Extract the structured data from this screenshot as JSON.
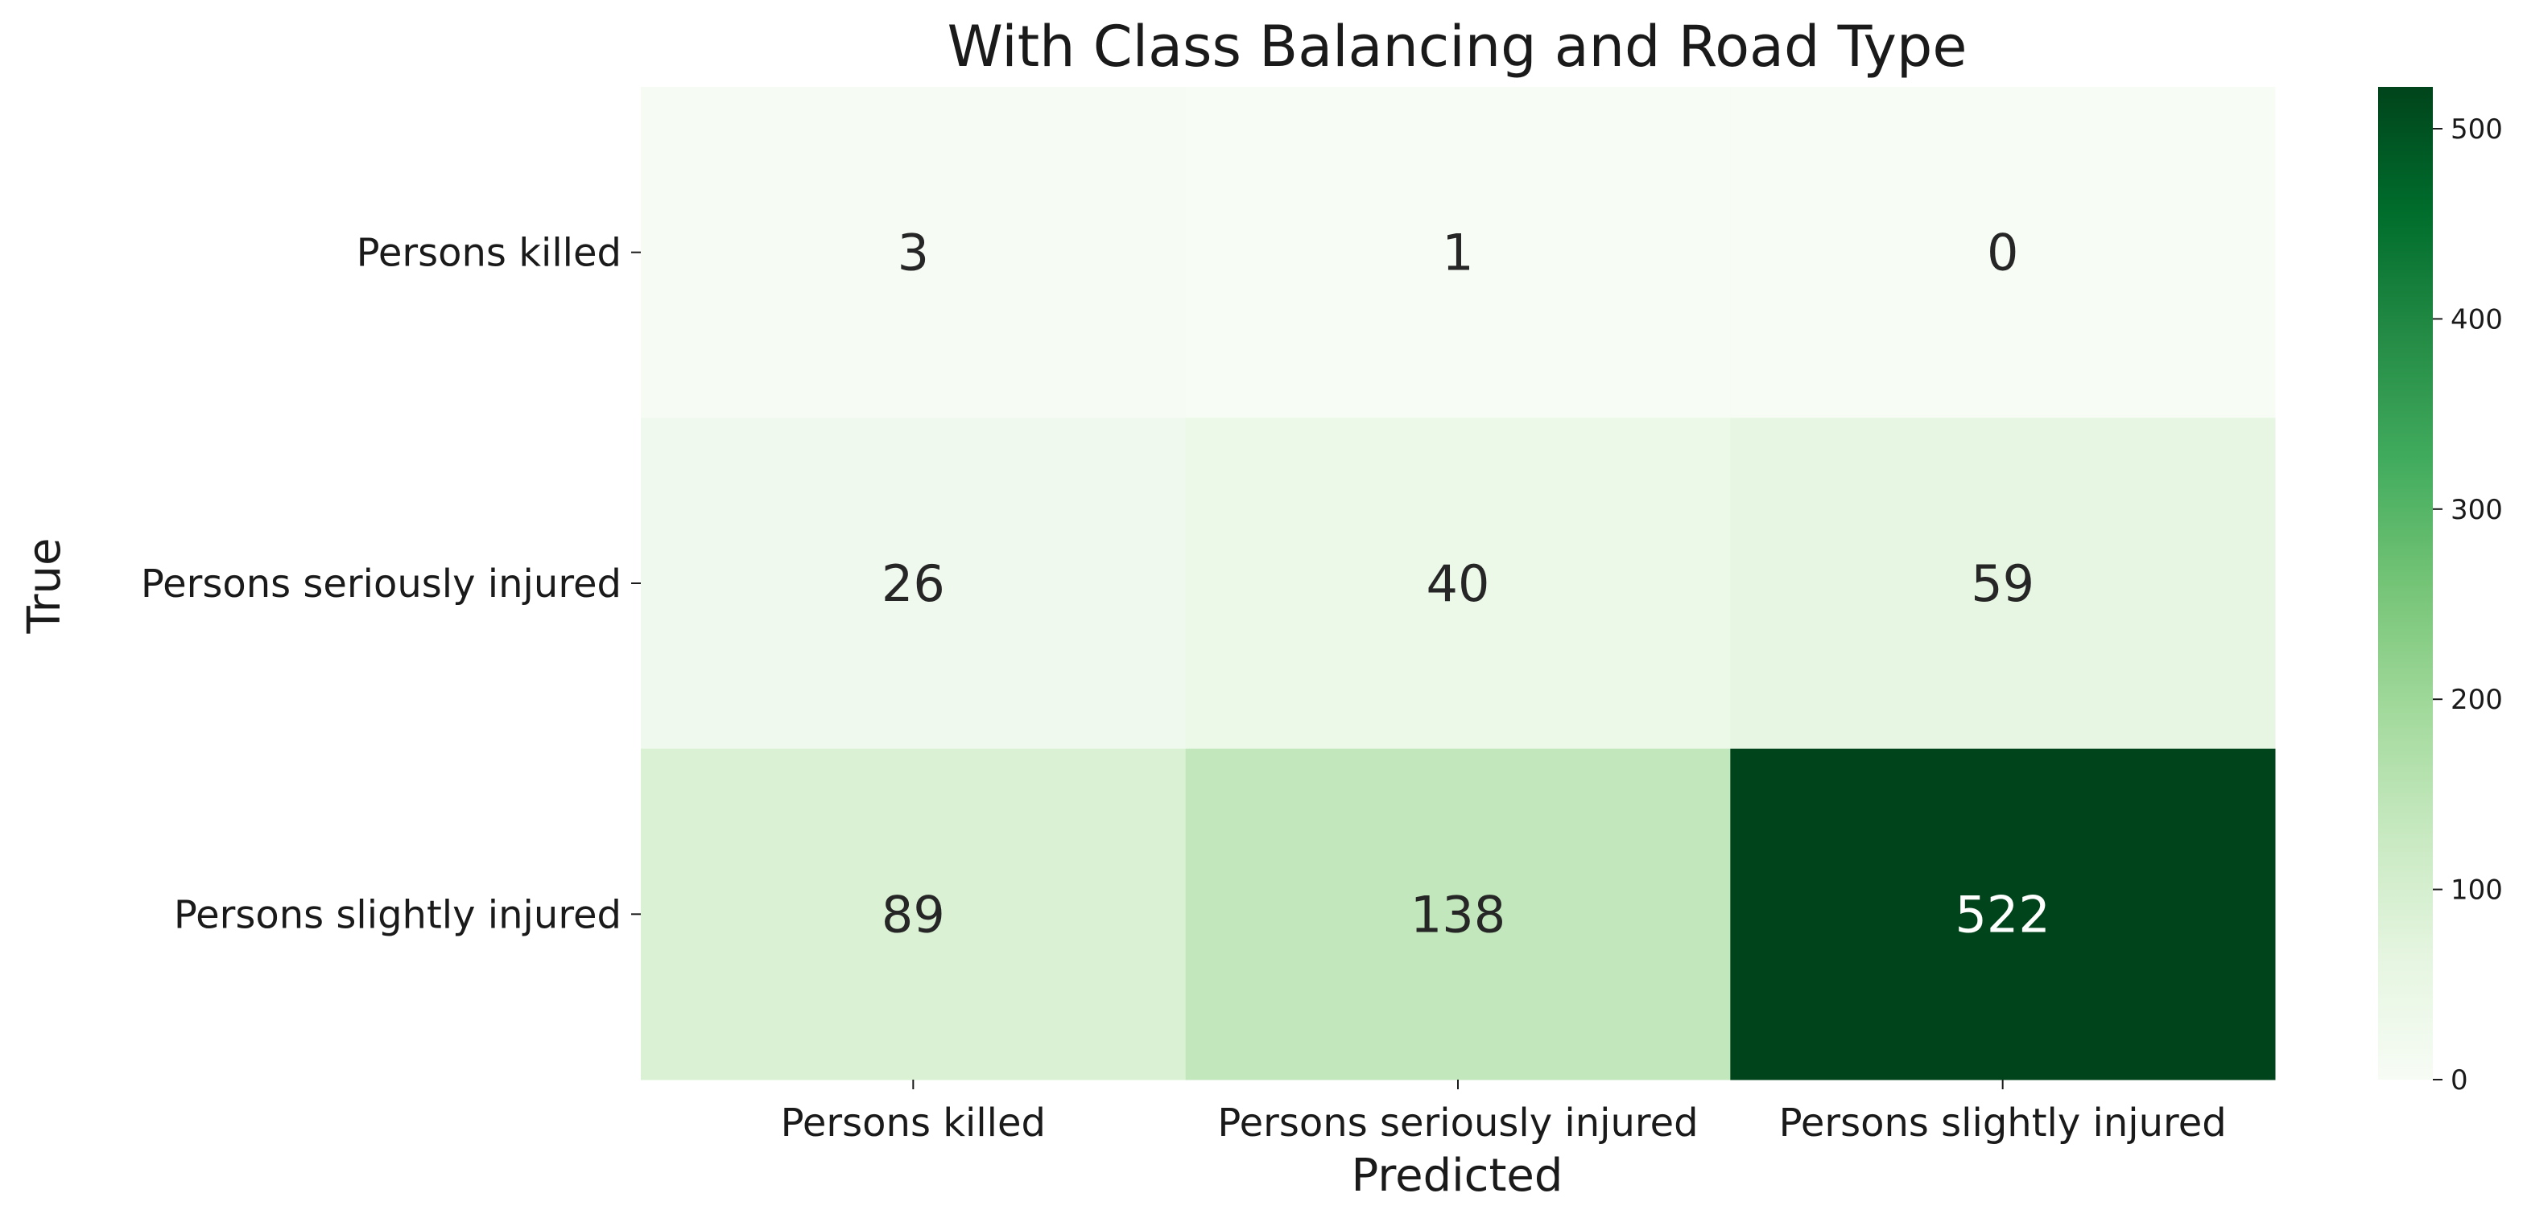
{
  "chart_data": {
    "type": "heatmap",
    "title": "With Class Balancing and Road Type",
    "xlabel": "Predicted",
    "ylabel": "True",
    "x_categories": [
      "Persons killed",
      "Persons seriously injured",
      "Persons slightly injured"
    ],
    "y_categories": [
      "Persons killed",
      "Persons seriously injured",
      "Persons slightly injured"
    ],
    "values": [
      [
        3,
        1,
        0
      ],
      [
        26,
        40,
        59
      ],
      [
        89,
        138,
        522
      ]
    ],
    "colormap": "Greens",
    "color_low": "#f7fcf5",
    "color_high": "#00441b",
    "vmin": 0,
    "vmax": 522,
    "colorbar_ticks": [
      0,
      100,
      200,
      300,
      400,
      500
    ],
    "grid": false,
    "legend": "colorbar-right"
  }
}
